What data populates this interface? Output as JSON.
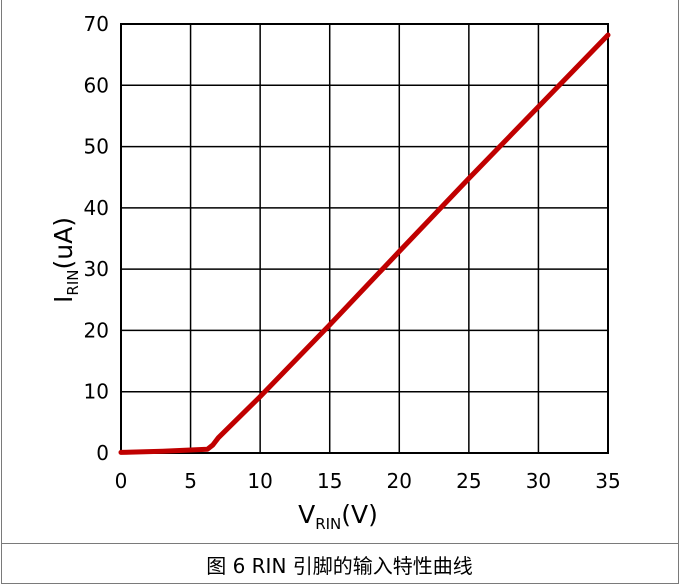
{
  "caption": "图 6 RIN 引脚的输入特性曲线",
  "chart_data": {
    "type": "line",
    "title": "",
    "xlabel": {
      "main": "V",
      "sub": "RIN",
      "unit": "(V)"
    },
    "ylabel": {
      "main": "I",
      "sub": "RIN",
      "unit": "(uA)"
    },
    "xlim": [
      0,
      35
    ],
    "ylim": [
      0,
      70
    ],
    "xticks": [
      0,
      5,
      10,
      15,
      20,
      25,
      30,
      35
    ],
    "yticks": [
      0,
      10,
      20,
      30,
      40,
      50,
      60,
      70
    ],
    "grid": true,
    "series": [
      {
        "color": "#c00000",
        "x": [
          0,
          3,
          6.2,
          6.6,
          7,
          10,
          15,
          20,
          25,
          30,
          35
        ],
        "y": [
          0.1,
          0.3,
          0.6,
          1.3,
          2.5,
          9.2,
          20.9,
          32.9,
          44.8,
          56.5,
          68.2
        ]
      }
    ]
  }
}
